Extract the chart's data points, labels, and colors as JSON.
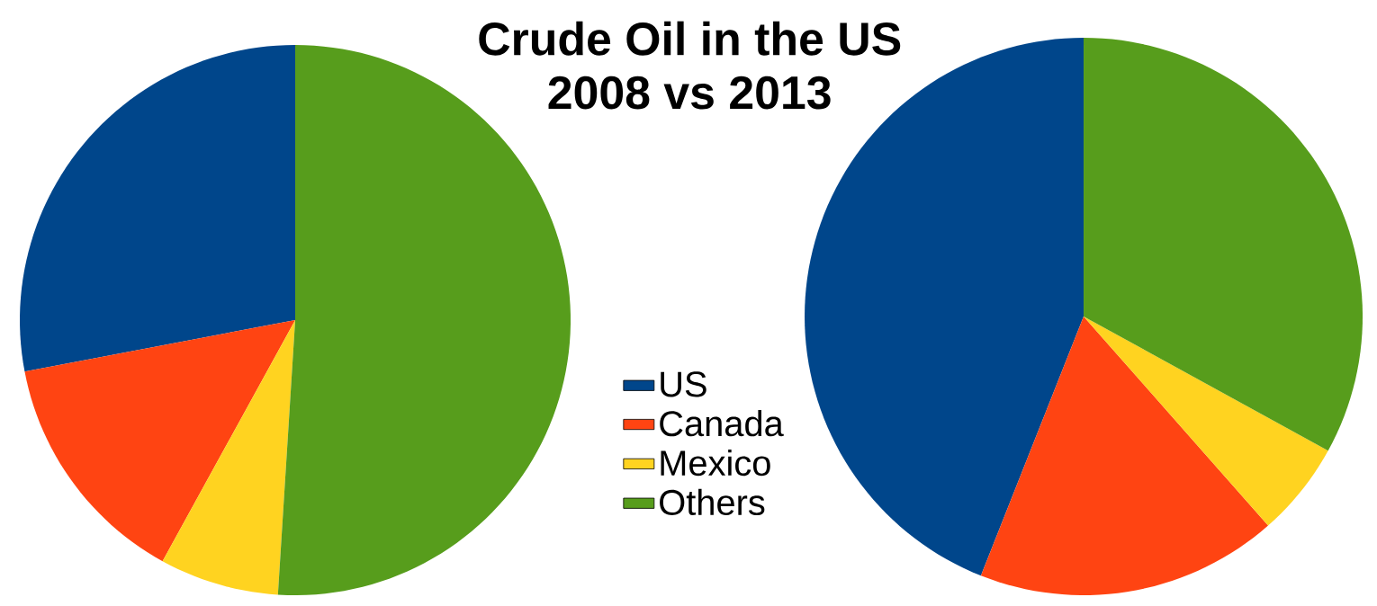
{
  "chart_data": [
    {
      "type": "pie",
      "title": "Crude Oil in the US",
      "subtitle": "2008  vs  2013",
      "categories": [
        "US",
        "Canada",
        "Mexico",
        "Others"
      ],
      "values": [
        28,
        14,
        7,
        51
      ],
      "colors": [
        "#00468b",
        "#ff4412",
        "#ffd320",
        "#579d1c"
      ],
      "legend": "right"
    },
    {
      "type": "pie",
      "categories": [
        null,
        null,
        null,
        null
      ],
      "values": [
        44,
        17.5,
        5.5,
        33
      ],
      "colors": [
        "#00468b",
        "#ff4412",
        "#ffd320",
        "#579d1c"
      ]
    }
  ]
}
